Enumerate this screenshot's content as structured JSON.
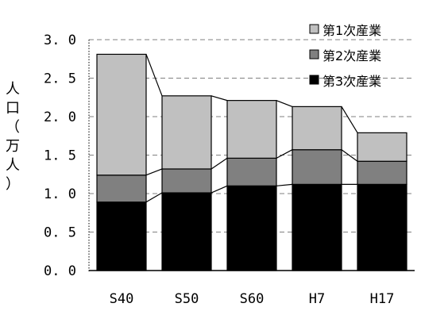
{
  "chart_data": {
    "type": "bar",
    "stacked": true,
    "categories": [
      "S40",
      "S50",
      "S60",
      "H7",
      "H17"
    ],
    "series": [
      {
        "name": "第3次産業",
        "color": "#000000",
        "values": [
          0.89,
          1.01,
          1.1,
          1.12,
          1.12
        ]
      },
      {
        "name": "第2次産業",
        "color": "#808080",
        "values": [
          0.35,
          0.31,
          0.36,
          0.45,
          0.3
        ]
      },
      {
        "name": "第1次産業",
        "color": "#c0c0c0",
        "values": [
          1.57,
          0.95,
          0.75,
          0.56,
          0.37
        ]
      }
    ],
    "ylabel": "人口（万人）",
    "ylim": [
      0,
      3.0
    ],
    "yticks": [
      "0. 0",
      "0. 5",
      "1. 0",
      "1. 5",
      "2. 0",
      "2. 5",
      "3. 0"
    ],
    "grid": true,
    "connector_lines": true,
    "legend": {
      "position": "top-right",
      "order": [
        "第1次産業",
        "第2次産業",
        "第3次産業"
      ]
    }
  }
}
